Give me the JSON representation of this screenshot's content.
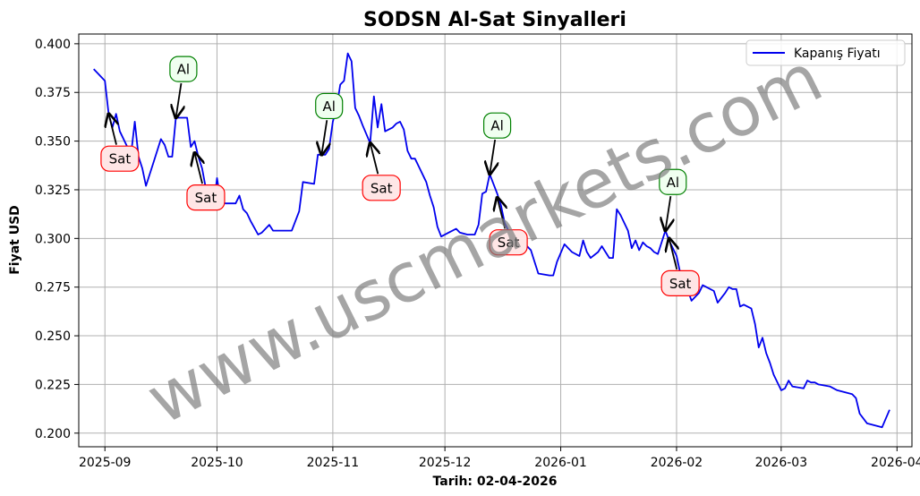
{
  "chart_data": {
    "type": "line",
    "title": "SODSN Al-Sat Sinyalleri",
    "xlabel": "Tarih: 02-04-2026",
    "ylabel": "Fiyat USD",
    "ylim": [
      0.193,
      0.405
    ],
    "xlim": [
      "2025-08-25",
      "2026-04-05"
    ],
    "x_ticks": [
      "2025-09-01",
      "2025-10-01",
      "2025-11-01",
      "2025-12-01",
      "2026-01-01",
      "2026-02-01",
      "2026-03-01",
      "2026-04-01"
    ],
    "x_tick_labels": [
      "2025-09",
      "2025-10",
      "2025-11",
      "2025-12",
      "2026-01",
      "2026-02",
      "2026-03",
      "2026-04"
    ],
    "y_ticks": [
      0.2,
      0.225,
      0.25,
      0.275,
      0.3,
      0.325,
      0.35,
      0.375,
      0.4
    ],
    "y_tick_labels": [
      "0.200",
      "0.225",
      "0.250",
      "0.275",
      "0.300",
      "0.325",
      "0.350",
      "0.375",
      "0.400"
    ],
    "grid": true,
    "legend_position": "top-right",
    "series": [
      {
        "name": "Kapanış Fiyatı",
        "color": "#0000ee",
        "points": [
          [
            "2025-08-29",
            0.387
          ],
          [
            "2025-09-01",
            0.381
          ],
          [
            "2025-09-02",
            0.364
          ],
          [
            "2025-09-03",
            0.357
          ],
          [
            "2025-09-04",
            0.364
          ],
          [
            "2025-09-05",
            0.355
          ],
          [
            "2025-09-07",
            0.347
          ],
          [
            "2025-09-08",
            0.343
          ],
          [
            "2025-09-09",
            0.36
          ],
          [
            "2025-09-10",
            0.342
          ],
          [
            "2025-09-11",
            0.336
          ],
          [
            "2025-09-12",
            0.327
          ],
          [
            "2025-09-14",
            0.339
          ],
          [
            "2025-09-16",
            0.351
          ],
          [
            "2025-09-17",
            0.348
          ],
          [
            "2025-09-18",
            0.342
          ],
          [
            "2025-09-19",
            0.342
          ],
          [
            "2025-09-20",
            0.362
          ],
          [
            "2025-09-22",
            0.362
          ],
          [
            "2025-09-23",
            0.362
          ],
          [
            "2025-09-24",
            0.347
          ],
          [
            "2025-09-25",
            0.35
          ],
          [
            "2025-09-26",
            0.342
          ],
          [
            "2025-09-27",
            0.336
          ],
          [
            "2025-09-28",
            0.326
          ],
          [
            "2025-09-30",
            0.315
          ],
          [
            "2025-10-01",
            0.331
          ],
          [
            "2025-10-02",
            0.319
          ],
          [
            "2025-10-03",
            0.318
          ],
          [
            "2025-10-06",
            0.318
          ],
          [
            "2025-10-07",
            0.322
          ],
          [
            "2025-10-08",
            0.315
          ],
          [
            "2025-10-09",
            0.313
          ],
          [
            "2025-10-10",
            0.309
          ],
          [
            "2025-10-12",
            0.302
          ],
          [
            "2025-10-13",
            0.303
          ],
          [
            "2025-10-15",
            0.307
          ],
          [
            "2025-10-16",
            0.304
          ],
          [
            "2025-10-20",
            0.304
          ],
          [
            "2025-10-21",
            0.304
          ],
          [
            "2025-10-23",
            0.314
          ],
          [
            "2025-10-24",
            0.329
          ],
          [
            "2025-10-27",
            0.328
          ],
          [
            "2025-10-28",
            0.343
          ],
          [
            "2025-10-30",
            0.343
          ],
          [
            "2025-10-31",
            0.346
          ],
          [
            "2025-11-01",
            0.36
          ],
          [
            "2025-11-02",
            0.367
          ],
          [
            "2025-11-03",
            0.379
          ],
          [
            "2025-11-04",
            0.381
          ],
          [
            "2025-11-05",
            0.395
          ],
          [
            "2025-11-06",
            0.391
          ],
          [
            "2025-11-07",
            0.367
          ],
          [
            "2025-11-08",
            0.363
          ],
          [
            "2025-11-09",
            0.358
          ],
          [
            "2025-11-11",
            0.349
          ],
          [
            "2025-11-12",
            0.373
          ],
          [
            "2025-11-13",
            0.357
          ],
          [
            "2025-11-14",
            0.369
          ],
          [
            "2025-11-15",
            0.355
          ],
          [
            "2025-11-17",
            0.357
          ],
          [
            "2025-11-18",
            0.359
          ],
          [
            "2025-11-19",
            0.36
          ],
          [
            "2025-11-20",
            0.356
          ],
          [
            "2025-11-21",
            0.345
          ],
          [
            "2025-11-22",
            0.341
          ],
          [
            "2025-11-23",
            0.341
          ],
          [
            "2025-11-24",
            0.337
          ],
          [
            "2025-11-26",
            0.329
          ],
          [
            "2025-11-27",
            0.322
          ],
          [
            "2025-11-28",
            0.316
          ],
          [
            "2025-11-29",
            0.306
          ],
          [
            "2025-11-30",
            0.301
          ],
          [
            "2025-12-02",
            0.303
          ],
          [
            "2025-12-04",
            0.305
          ],
          [
            "2025-12-05",
            0.303
          ],
          [
            "2025-12-07",
            0.302
          ],
          [
            "2025-12-09",
            0.302
          ],
          [
            "2025-12-10",
            0.307
          ],
          [
            "2025-12-11",
            0.323
          ],
          [
            "2025-12-12",
            0.324
          ],
          [
            "2025-12-13",
            0.333
          ],
          [
            "2025-12-14",
            0.328
          ],
          [
            "2025-12-15",
            0.323
          ],
          [
            "2025-12-16",
            0.317
          ],
          [
            "2025-12-17",
            0.308
          ],
          [
            "2025-12-19",
            0.3
          ],
          [
            "2025-12-20",
            0.298
          ],
          [
            "2025-12-22",
            0.298
          ],
          [
            "2025-12-24",
            0.294
          ],
          [
            "2025-12-25",
            0.288
          ],
          [
            "2025-12-26",
            0.282
          ],
          [
            "2025-12-29",
            0.281
          ],
          [
            "2025-12-30",
            0.281
          ],
          [
            "2025-12-31",
            0.288
          ],
          [
            "2026-01-02",
            0.297
          ],
          [
            "2026-01-04",
            0.293
          ],
          [
            "2026-01-06",
            0.291
          ],
          [
            "2026-01-07",
            0.299
          ],
          [
            "2026-01-08",
            0.293
          ],
          [
            "2026-01-09",
            0.29
          ],
          [
            "2026-01-11",
            0.293
          ],
          [
            "2026-01-12",
            0.296
          ],
          [
            "2026-01-14",
            0.29
          ],
          [
            "2026-01-15",
            0.29
          ],
          [
            "2026-01-16",
            0.315
          ],
          [
            "2026-01-17",
            0.312
          ],
          [
            "2026-01-18",
            0.308
          ],
          [
            "2026-01-19",
            0.304
          ],
          [
            "2026-01-20",
            0.295
          ],
          [
            "2026-01-21",
            0.299
          ],
          [
            "2026-01-22",
            0.294
          ],
          [
            "2026-01-23",
            0.298
          ],
          [
            "2026-01-24",
            0.296
          ],
          [
            "2026-01-25",
            0.295
          ],
          [
            "2026-01-26",
            0.293
          ],
          [
            "2026-01-27",
            0.292
          ],
          [
            "2026-01-29",
            0.304
          ],
          [
            "2026-01-30",
            0.299
          ],
          [
            "2026-01-31",
            0.295
          ],
          [
            "2026-02-01",
            0.291
          ],
          [
            "2026-02-02",
            0.282
          ],
          [
            "2026-02-03",
            0.279
          ],
          [
            "2026-02-05",
            0.268
          ],
          [
            "2026-02-07",
            0.272
          ],
          [
            "2026-02-08",
            0.276
          ],
          [
            "2026-02-09",
            0.275
          ],
          [
            "2026-02-11",
            0.273
          ],
          [
            "2026-02-12",
            0.267
          ],
          [
            "2026-02-14",
            0.272
          ],
          [
            "2026-02-15",
            0.275
          ],
          [
            "2026-02-16",
            0.274
          ],
          [
            "2026-02-17",
            0.274
          ],
          [
            "2026-02-18",
            0.265
          ],
          [
            "2026-02-19",
            0.266
          ],
          [
            "2026-02-20",
            0.265
          ],
          [
            "2026-02-21",
            0.264
          ],
          [
            "2026-02-22",
            0.256
          ],
          [
            "2026-02-23",
            0.244
          ],
          [
            "2026-02-24",
            0.249
          ],
          [
            "2026-02-25",
            0.241
          ],
          [
            "2026-02-26",
            0.236
          ],
          [
            "2026-02-27",
            0.23
          ],
          [
            "2026-03-01",
            0.222
          ],
          [
            "2026-03-02",
            0.223
          ],
          [
            "2026-03-03",
            0.227
          ],
          [
            "2026-03-04",
            0.224
          ],
          [
            "2026-03-07",
            0.223
          ],
          [
            "2026-03-08",
            0.227
          ],
          [
            "2026-03-09",
            0.226
          ],
          [
            "2026-03-10",
            0.226
          ],
          [
            "2026-03-11",
            0.225
          ],
          [
            "2026-03-14",
            0.224
          ],
          [
            "2026-03-16",
            0.222
          ],
          [
            "2026-03-20",
            0.22
          ],
          [
            "2026-03-21",
            0.218
          ],
          [
            "2026-03-22",
            0.21
          ],
          [
            "2026-03-24",
            0.205
          ],
          [
            "2026-03-28",
            0.203
          ],
          [
            "2026-03-30",
            0.212
          ]
        ]
      }
    ],
    "annotations": [
      {
        "label": "Sat",
        "type": "sell",
        "x": "2025-09-02",
        "y": 0.364,
        "text_x": "2025-09-05",
        "text_y": 0.341
      },
      {
        "label": "Al",
        "type": "buy",
        "x": "2025-09-20",
        "y": 0.362,
        "text_x": "2025-09-22",
        "text_y": 0.387
      },
      {
        "label": "Sat",
        "type": "sell",
        "x": "2025-09-25",
        "y": 0.344,
        "text_x": "2025-09-28",
        "text_y": 0.321
      },
      {
        "label": "Al",
        "type": "buy",
        "x": "2025-10-29",
        "y": 0.343,
        "text_x": "2025-10-31",
        "text_y": 0.368
      },
      {
        "label": "Sat",
        "type": "sell",
        "x": "2025-11-11",
        "y": 0.349,
        "text_x": "2025-11-14",
        "text_y": 0.326
      },
      {
        "label": "Al",
        "type": "buy",
        "x": "2025-12-13",
        "y": 0.333,
        "text_x": "2025-12-15",
        "text_y": 0.358
      },
      {
        "label": "Sat",
        "type": "sell",
        "x": "2025-12-15",
        "y": 0.321,
        "text_x": "2025-12-18",
        "text_y": 0.298
      },
      {
        "label": "Al",
        "type": "buy",
        "x": "2026-01-29",
        "y": 0.304,
        "text_x": "2026-01-31",
        "text_y": 0.329
      },
      {
        "label": "Sat",
        "type": "sell",
        "x": "2026-01-30",
        "y": 0.3,
        "text_x": "2026-02-02",
        "text_y": 0.277
      }
    ],
    "colors": {
      "buy_edge": "#008000",
      "buy_fill": "#f0fff0",
      "sell_edge": "#ff0000",
      "sell_fill": "#ffe6e6",
      "grid": "#b0b0b0"
    }
  },
  "watermark": "www.uscmarkets.com"
}
